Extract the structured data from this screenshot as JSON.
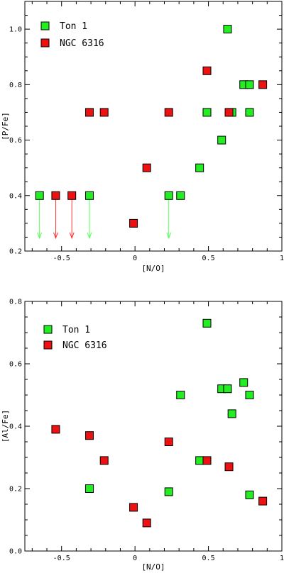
{
  "colors": {
    "ton1": "#22ee22",
    "ngc6316": "#ee1111",
    "ton1_arrow": "#55ff55",
    "ngc6316_arrow": "#ff3333"
  },
  "chart_data": [
    {
      "id": "top",
      "type": "scatter",
      "xlabel": "[N/O]",
      "ylabel": "[P/Fe]",
      "xlim": [
        -0.75,
        1.0
      ],
      "ylim": [
        0.2,
        1.1
      ],
      "xticks": [
        -0.5,
        0,
        0.5,
        1
      ],
      "xtick_labels": [
        "-0.5",
        "0",
        "0.5",
        "1"
      ],
      "yticks": [
        0.2,
        0.4,
        0.6,
        0.8,
        1.0
      ],
      "ytick_labels": [
        "0.2",
        "0.4",
        "0.6",
        "0.8",
        "1.0"
      ],
      "legend_position": "top-left",
      "series": [
        {
          "name": "Ton 1",
          "color_key": "ton1",
          "points": [
            {
              "x": -0.65,
              "y": 0.4,
              "upper_limit": true
            },
            {
              "x": -0.31,
              "y": 0.4,
              "upper_limit": true
            },
            {
              "x": 0.23,
              "y": 0.4,
              "upper_limit": true
            },
            {
              "x": 0.31,
              "y": 0.4
            },
            {
              "x": 0.44,
              "y": 0.5
            },
            {
              "x": 0.49,
              "y": 0.7
            },
            {
              "x": 0.59,
              "y": 0.6
            },
            {
              "x": 0.63,
              "y": 1.0
            },
            {
              "x": 0.66,
              "y": 0.7
            },
            {
              "x": 0.74,
              "y": 0.8
            },
            {
              "x": 0.78,
              "y": 0.8
            },
            {
              "x": 0.78,
              "y": 0.7
            }
          ]
        },
        {
          "name": "NGC 6316",
          "color_key": "ngc6316",
          "points": [
            {
              "x": -0.54,
              "y": 0.4,
              "upper_limit": true
            },
            {
              "x": -0.43,
              "y": 0.4,
              "upper_limit": true
            },
            {
              "x": -0.31,
              "y": 0.7
            },
            {
              "x": -0.21,
              "y": 0.7
            },
            {
              "x": -0.01,
              "y": 0.3
            },
            {
              "x": 0.08,
              "y": 0.5
            },
            {
              "x": 0.23,
              "y": 0.7
            },
            {
              "x": 0.49,
              "y": 0.85
            },
            {
              "x": 0.64,
              "y": 0.7
            },
            {
              "x": 0.87,
              "y": 0.8
            }
          ]
        }
      ]
    },
    {
      "id": "bottom",
      "type": "scatter",
      "xlabel": "[N/O]",
      "ylabel": "[Al/Fe]",
      "xlim": [
        -0.75,
        1.0
      ],
      "ylim": [
        0.0,
        0.8
      ],
      "xticks": [
        -0.5,
        0,
        0.5,
        1
      ],
      "xtick_labels": [
        "-0.5",
        "0",
        "0.5",
        "1"
      ],
      "yticks": [
        0.0,
        0.2,
        0.4,
        0.6,
        0.8
      ],
      "ytick_labels": [
        "0.0",
        "0.2",
        "0.4",
        "0.6",
        "0.8"
      ],
      "legend_position": "top-left",
      "series": [
        {
          "name": "Ton 1",
          "color_key": "ton1",
          "points": [
            {
              "x": -0.31,
              "y": 0.2
            },
            {
              "x": 0.23,
              "y": 0.19
            },
            {
              "x": 0.31,
              "y": 0.5
            },
            {
              "x": 0.44,
              "y": 0.29
            },
            {
              "x": 0.49,
              "y": 0.73
            },
            {
              "x": 0.59,
              "y": 0.52
            },
            {
              "x": 0.63,
              "y": 0.52
            },
            {
              "x": 0.66,
              "y": 0.44
            },
            {
              "x": 0.74,
              "y": 0.54
            },
            {
              "x": 0.78,
              "y": 0.5
            },
            {
              "x": 0.78,
              "y": 0.18
            }
          ]
        },
        {
          "name": "NGC 6316",
          "color_key": "ngc6316",
          "points": [
            {
              "x": -0.54,
              "y": 0.39
            },
            {
              "x": -0.31,
              "y": 0.37
            },
            {
              "x": -0.21,
              "y": 0.29
            },
            {
              "x": -0.01,
              "y": 0.14
            },
            {
              "x": 0.08,
              "y": 0.09
            },
            {
              "x": 0.23,
              "y": 0.35
            },
            {
              "x": 0.49,
              "y": 0.29
            },
            {
              "x": 0.64,
              "y": 0.27
            },
            {
              "x": 0.87,
              "y": 0.16
            }
          ]
        }
      ]
    }
  ]
}
